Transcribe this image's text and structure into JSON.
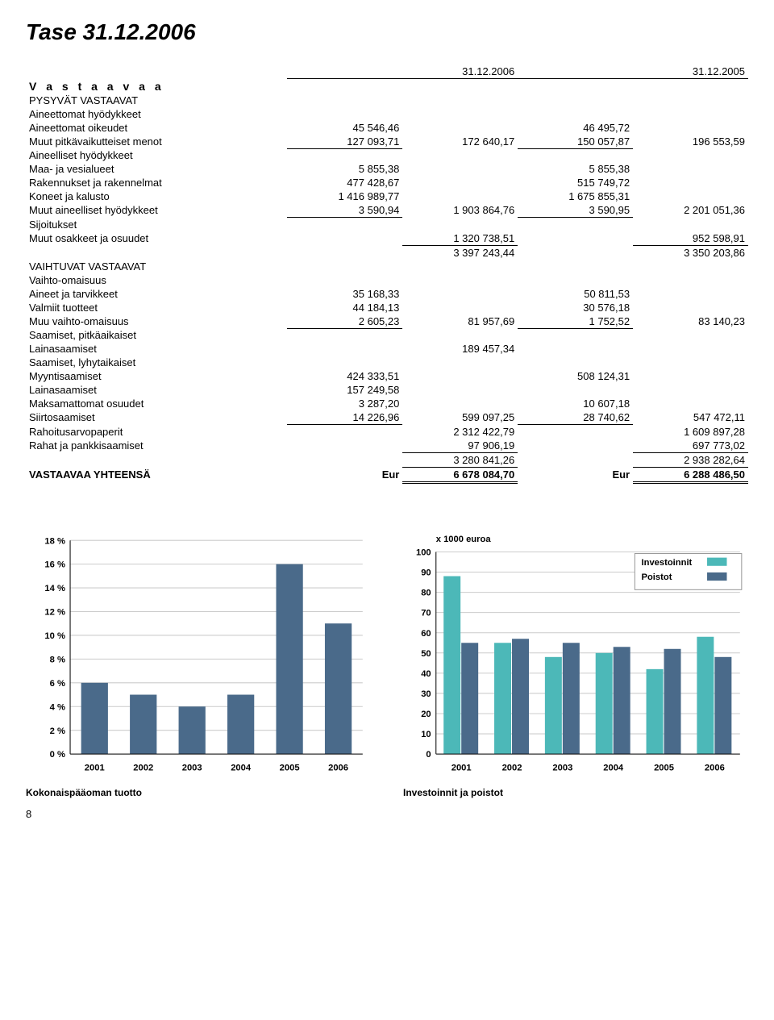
{
  "page_title": "Tase 31.12.2006",
  "date_left": "31.12.2006",
  "date_right": "31.12.2005",
  "vastaavaa_label": "V a s t a a v a a",
  "sections": {
    "pysyvat": "PYSYVÄT VASTAAVAT",
    "aineettomat": "Aineettomat hyödykkeet",
    "aineelliset": "Aineelliset hyödykkeet",
    "sijoitukset": "Sijoitukset",
    "vaihtuvat": "VAIHTUVAT VASTAAVAT",
    "vaihto": "Vaihto-omaisuus",
    "saam_pitka": "Saamiset, pitkäaikaiset",
    "saam_lyhyt": "Saamiset, lyhytaikaiset"
  },
  "rows": {
    "aineettomat_oikeudet": {
      "l": "Aineettomat oikeudet",
      "a": "45 546,46",
      "b": "",
      "c": "46 495,72",
      "d": ""
    },
    "muut_pitkavaik": {
      "l": "Muut pitkävaikutteiset menot",
      "a": "127 093,71",
      "b": "172 640,17",
      "c": "150 057,87",
      "d": "196 553,59"
    },
    "maa_vesi": {
      "l": "Maa- ja vesialueet",
      "a": "5 855,38",
      "b": "",
      "c": "5 855,38",
      "d": ""
    },
    "rakennukset": {
      "l": "Rakennukset ja rakennelmat",
      "a": "477 428,67",
      "b": "",
      "c": "515 749,72",
      "d": ""
    },
    "koneet": {
      "l": "Koneet ja kalusto",
      "a": "1 416 989,77",
      "b": "",
      "c": "1 675 855,31",
      "d": ""
    },
    "muut_aineelliset": {
      "l": "Muut aineelliset hyödykkeet",
      "a": "3 590,94",
      "b": "1 903 864,76",
      "c": "3 590,95",
      "d": "2 201 051,36"
    },
    "muut_osakkeet": {
      "l": "Muut osakkeet ja osuudet",
      "a": "",
      "b": "1 320 738,51",
      "c": "",
      "d": "952 598,91"
    },
    "pysyvat_sum": {
      "b": "3 397 243,44",
      "d": "3 350 203,86"
    },
    "aineet_tarvikkeet": {
      "l": "Aineet ja tarvikkeet",
      "a": "35 168,33",
      "b": "",
      "c": "50 811,53",
      "d": ""
    },
    "valmiit": {
      "l": "Valmiit tuotteet",
      "a": "44 184,13",
      "b": "",
      "c": "30 576,18",
      "d": ""
    },
    "muu_vaihto": {
      "l": "Muu vaihto-omaisuus",
      "a": "2 605,23",
      "b": "81 957,69",
      "c": "1 752,52",
      "d": "83 140,23"
    },
    "lainasaam_pitka": {
      "l": "Lainasaamiset",
      "a": "",
      "b": "189 457,34",
      "c": "",
      "d": ""
    },
    "myyntisaam": {
      "l": "Myyntisaamiset",
      "a": "424 333,51",
      "b": "",
      "c": "508 124,31",
      "d": ""
    },
    "lainasaam_lyhyt": {
      "l": "Lainasaamiset",
      "a": "157 249,58",
      "b": "",
      "c": "",
      "d": ""
    },
    "maksamattomat": {
      "l": "Maksamattomat osuudet",
      "a": "3 287,20",
      "b": "",
      "c": "10 607,18",
      "d": ""
    },
    "siirtosaam": {
      "l": "Siirtosaamiset",
      "a": "14 226,96",
      "b": "599 097,25",
      "c": "28 740,62",
      "d": "547 472,11"
    },
    "rahoitusarv": {
      "l": "Rahoitusarvopaperit",
      "a": "",
      "b": "2 312 422,79",
      "c": "",
      "d": "1 609 897,28"
    },
    "rahat": {
      "l": "Rahat ja pankkisaamiset",
      "a": "",
      "b": "97 906,19",
      "c": "",
      "d": "697 773,02"
    },
    "vaihtuvat_sum": {
      "b": "3 280 841,26",
      "d": "2 938 282,64"
    }
  },
  "total": {
    "label": "VASTAAVAA YHTEENSÄ",
    "curr": "Eur",
    "b": "6 678 084,70",
    "d": "6 288 486,50"
  },
  "chart1": {
    "type": "bar",
    "years": [
      "2001",
      "2002",
      "2003",
      "2004",
      "2005",
      "2006"
    ],
    "values": [
      6,
      5,
      4,
      5,
      16,
      11
    ],
    "ylim": [
      0,
      18
    ],
    "ytick_step": 2,
    "ysuffix": " %",
    "bar_color": "#4a6a8a",
    "grid_color": "#cccccc",
    "bg": "#ffffff",
    "title": "Kokonaispääoman tuotto"
  },
  "chart2": {
    "type": "grouped-bar",
    "unit_label": "x 1000 euroa",
    "years": [
      "2001",
      "2002",
      "2003",
      "2004",
      "2005",
      "2006"
    ],
    "series": [
      {
        "name": "Investoinnit",
        "color": "#4cb8b8",
        "values": [
          88,
          55,
          48,
          50,
          42,
          58
        ]
      },
      {
        "name": "Poistot",
        "color": "#4a6a8a",
        "values": [
          55,
          57,
          55,
          53,
          52,
          48
        ]
      }
    ],
    "ylim": [
      0,
      100
    ],
    "ytick_step": 10,
    "grid_color": "#cccccc",
    "bg": "#ffffff",
    "title": "Investoinnit ja poistot"
  },
  "page_number": "8"
}
